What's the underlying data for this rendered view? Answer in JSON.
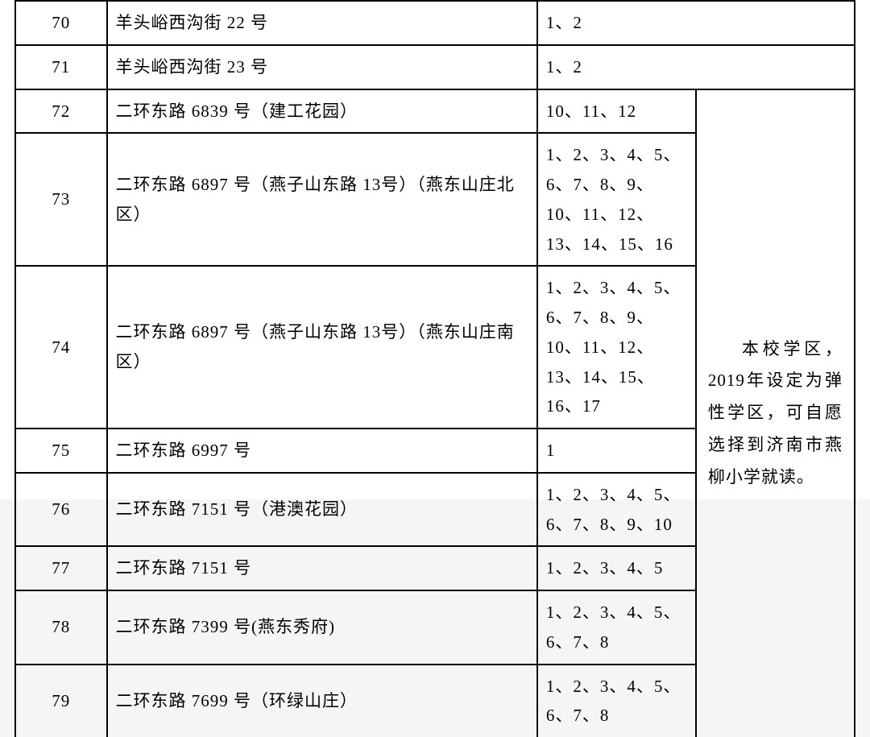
{
  "table": {
    "border_color": "#000000",
    "background_color": "#ffffff",
    "font_family": "SimSun",
    "font_size": 21,
    "columns": {
      "num_width": 85,
      "addr_width": 400,
      "units_width": 295,
      "note_width": 245
    },
    "rows": [
      {
        "num": "70",
        "addr": "羊头峪西沟街 22 号",
        "units": "1、2",
        "has_note": false
      },
      {
        "num": "71",
        "addr": "羊头峪西沟街 23 号",
        "units": "1、2",
        "has_note": false
      },
      {
        "num": "72",
        "addr": "二环东路 6839 号（建工花园）",
        "units": "10、11、12",
        "has_note": true
      },
      {
        "num": "73",
        "addr": "二环东路 6897 号（燕子山东路 13号）（燕东山庄北区）",
        "units": "1、2、3、4、5、6、7、8、9、10、11、12、13、14、15、16",
        "has_note": true
      },
      {
        "num": "74",
        "addr": "二环东路 6897 号（燕子山东路 13号）（燕东山庄南区）",
        "units": "1、2、3、4、5、6、7、8、9、10、11、12、13、14、15、16、17",
        "has_note": true
      },
      {
        "num": "75",
        "addr": "二环东路 6997 号",
        "units": "1",
        "has_note": true
      },
      {
        "num": "76",
        "addr": "二环东路 7151 号（港澳花园）",
        "units": "1、2、3、4、5、6、7、8、9、10",
        "has_note": true
      },
      {
        "num": "77",
        "addr": "二环东路 7151 号",
        "units": "1、2、3、4、5",
        "has_note": true
      },
      {
        "num": "78",
        "addr": "二环东路 7399 号(燕东秀府)",
        "units": "1、2、3、4、5、6、7、8",
        "has_note": true
      },
      {
        "num": "79",
        "addr": "二环东路 7699 号（环绿山庄）",
        "units": "1、2、3、4、5、6、7、8",
        "has_note": true
      }
    ],
    "note_text": "本校学区，2019年设定为弹性学区，可自愿选择到济南市燕柳小学就读。",
    "note_rowspan": 8
  }
}
